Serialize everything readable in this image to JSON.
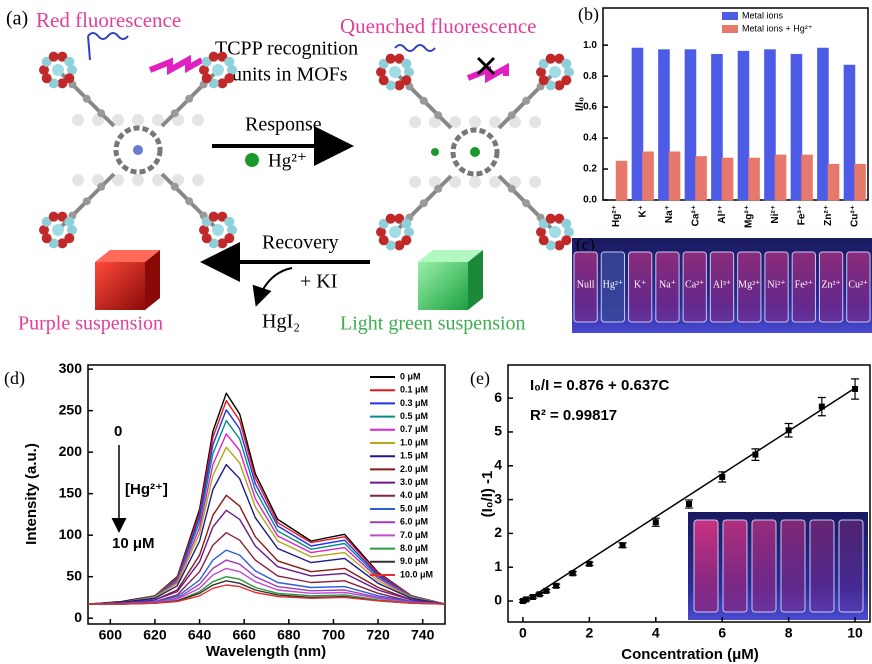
{
  "schematic": {
    "panel_label": "(a)",
    "red_fluorescence": "Red fluorescence",
    "quenched_fluorescence": "Quenched fluorescence",
    "tcpp_label": [
      "TCPP recognition",
      "units in MOFs"
    ],
    "response": "Response",
    "hg_ion": "Hg²⁺",
    "recovery": "Recovery",
    "ki": "+ KI",
    "product": "HgI₂",
    "purple_suspension": "Purple suspension",
    "green_suspension": "Light green suspension"
  },
  "photo": {
    "panel_label": "(c)",
    "labels": [
      "Null",
      "Hg²⁺",
      "K⁺",
      "Na⁺",
      "Ca²⁺",
      "Al³⁺",
      "Mg²⁺",
      "Ni²⁺",
      "Fe³⁺",
      "Zn²⁺",
      "Cu²⁺"
    ]
  },
  "chart_data": [
    {
      "type": "bar",
      "panel_label": "(b)",
      "ylabel": "I/I₀",
      "categories": [
        "Hg²⁺",
        "K⁺",
        "Na⁺",
        "Ca²⁺",
        "Al³⁺",
        "Mg²⁺",
        "Ni²⁺",
        "Fe³⁺",
        "Zn²⁺",
        "Cu²⁺"
      ],
      "series": [
        {
          "name": "Metal ions",
          "color": "#4c5ce6",
          "values": [
            null,
            0.98,
            0.97,
            0.97,
            0.94,
            0.96,
            0.97,
            0.94,
            0.98,
            0.87
          ]
        },
        {
          "name": "Metal ions + Hg²⁺",
          "color": "#e6786c",
          "values": [
            0.25,
            0.31,
            0.31,
            0.28,
            0.27,
            0.27,
            0.29,
            0.29,
            0.23,
            0.23
          ]
        }
      ],
      "ylim": [
        0,
        1.24
      ],
      "yticks": [
        {
          "value": 0,
          "label": "0.0"
        },
        {
          "value": 0.2,
          "label": "0.2"
        },
        {
          "value": 0.4,
          "label": "0.4"
        },
        {
          "value": 0.6,
          "label": "0.6"
        },
        {
          "value": 0.8,
          "label": "0.8"
        },
        {
          "value": 1,
          "label": "1.0"
        }
      ],
      "grid": false,
      "legend": "top-right"
    },
    {
      "type": "line",
      "panel_label": "(d)",
      "xlabel": "Wavelength (nm)",
      "ylabel": "Intensity (a.u.)",
      "x": [
        590,
        605,
        620,
        630,
        640,
        646,
        652,
        658,
        665,
        675,
        690,
        705,
        720,
        735,
        750
      ],
      "series": [
        {
          "name": "0 μM",
          "color": "#000000",
          "values": [
            17,
            20,
            27,
            50,
            131,
            225,
            271,
            246,
            174,
            119,
            93,
            101,
            55,
            27,
            17
          ]
        },
        {
          "name": "0.1 μM",
          "color": "#e8141c",
          "values": [
            17,
            19,
            27,
            49,
            127,
            218,
            262,
            238,
            169,
            115,
            91,
            98,
            54,
            27,
            17
          ]
        },
        {
          "name": "0.3 μM",
          "color": "#2233ee",
          "values": [
            17,
            19,
            26,
            47,
            122,
            209,
            251,
            228,
            162,
            111,
            87,
            94,
            52,
            26,
            17
          ]
        },
        {
          "name": "0.5 μM",
          "color": "#0a8a8a",
          "values": [
            17,
            19,
            26,
            46,
            116,
            198,
            238,
            216,
            154,
            105,
            83,
            90,
            50,
            26,
            17
          ]
        },
        {
          "name": "0.7 μM",
          "color": "#e020d0",
          "values": [
            17,
            19,
            25,
            44,
            109,
            185,
            222,
            202,
            144,
            99,
            79,
            85,
            48,
            25,
            17
          ]
        },
        {
          "name": "1.0 μM",
          "color": "#b0a818",
          "values": [
            17,
            19,
            25,
            42,
            102,
            172,
            206,
            187,
            134,
            93,
            74,
            79,
            45,
            25,
            17
          ]
        },
        {
          "name": "1.5 μM",
          "color": "#1a1a8a",
          "values": [
            17,
            19,
            24,
            39,
            93,
            155,
            185,
            168,
            121,
            84,
            67,
            72,
            42,
            24,
            17
          ]
        },
        {
          "name": "2.0 μM",
          "color": "#8a1a1a",
          "values": [
            17,
            18,
            22,
            34,
            76,
            124,
            148,
            135,
            98,
            69,
            56,
            60,
            37,
            22,
            17
          ]
        },
        {
          "name": "3.0 μM",
          "color": "#6a1a8a",
          "values": [
            17,
            18,
            22,
            32,
            68,
            110,
            130,
            119,
            87,
            62,
            51,
            54,
            34,
            22,
            17
          ]
        },
        {
          "name": "4.0 μM",
          "color": "#8a2040",
          "values": [
            17,
            18,
            20,
            28,
            56,
            88,
            103,
            94,
            70,
            51,
            43,
            45,
            30,
            20,
            17
          ]
        },
        {
          "name": "5.0 μM",
          "color": "#2d5fd8",
          "values": [
            17,
            18,
            20,
            26,
            46,
            70,
            82,
            76,
            57,
            43,
            37,
            38,
            27,
            20,
            17
          ]
        },
        {
          "name": "6.0 μM",
          "color": "#9b3fbf",
          "values": [
            17,
            18,
            19,
            24,
            41,
            60,
            70,
            65,
            50,
            38,
            33,
            34,
            25,
            19,
            17
          ]
        },
        {
          "name": "7.0 μM",
          "color": "#c04ad0",
          "values": [
            17,
            17,
            19,
            23,
            36,
            52,
            60,
            56,
            44,
            34,
            30,
            31,
            24,
            19,
            17
          ]
        },
        {
          "name": "8.0 μM",
          "color": "#2a9a3a",
          "values": [
            17,
            17,
            18,
            21,
            32,
            44,
            50,
            47,
            37,
            30,
            27,
            28,
            22,
            18,
            17
          ]
        },
        {
          "name": "9.0 μM",
          "color": "#333333",
          "values": [
            17,
            17,
            18,
            21,
            30,
            40,
            45,
            42,
            34,
            28,
            25,
            26,
            21,
            18,
            17
          ]
        },
        {
          "name": "10.0 μM",
          "color": "#e03030",
          "values": [
            17,
            17,
            18,
            20,
            27,
            36,
            40,
            38,
            31,
            26,
            24,
            25,
            21,
            18,
            17
          ]
        }
      ],
      "xlim": [
        590,
        750
      ],
      "xticks": [
        600,
        620,
        640,
        660,
        680,
        700,
        720,
        740
      ],
      "ylim": [
        -7,
        305
      ],
      "yticks": [
        0,
        50,
        100,
        150,
        200,
        250,
        300
      ],
      "annotations": [
        "0",
        "[Hg²⁺]",
        "10 μM"
      ],
      "grid": false,
      "legend": "top-right"
    },
    {
      "type": "scatter",
      "panel_label": "(e)",
      "xlabel": "Concentration (μM)",
      "ylabel": "(I₀/I) -1",
      "x": [
        0,
        0.1,
        0.3,
        0.5,
        0.7,
        1.0,
        1.5,
        2.0,
        3.0,
        4.0,
        5.0,
        6.0,
        7.0,
        8.0,
        9.0,
        10.0
      ],
      "values": [
        0,
        0.05,
        0.12,
        0.2,
        0.3,
        0.45,
        0.82,
        1.1,
        1.65,
        2.33,
        2.87,
        3.67,
        4.33,
        5.05,
        5.75,
        6.27
      ],
      "errors": [
        0.04,
        0.04,
        0.04,
        0.04,
        0.04,
        0.05,
        0.05,
        0.05,
        0.07,
        0.12,
        0.12,
        0.15,
        0.17,
        0.2,
        0.27,
        0.3
      ],
      "color": "#000000",
      "fit": {
        "x": [
          0,
          10
        ],
        "values": [
          -0.05,
          6.3
        ]
      },
      "xlim": [
        -0.45,
        10.45
      ],
      "xticks": [
        0,
        2,
        4,
        6,
        8,
        10
      ],
      "ylim": [
        -0.62,
        6.98
      ],
      "yticks": [
        0,
        1,
        2,
        3,
        4,
        5,
        6
      ],
      "annotations": [
        "I₀/I = 0.876 + 0.637C",
        "R² = 0.99817"
      ],
      "grid": false
    }
  ]
}
